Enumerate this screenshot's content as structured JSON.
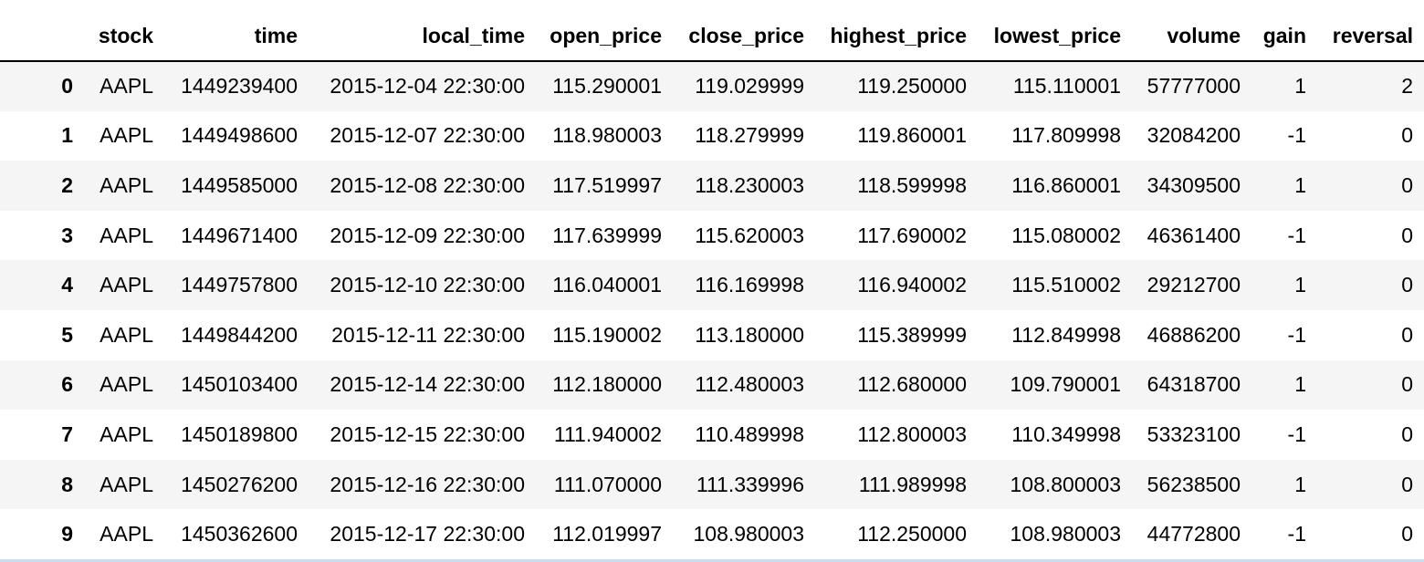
{
  "columns": [
    "",
    "stock",
    "time",
    "local_time",
    "open_price",
    "close_price",
    "highest_price",
    "lowest_price",
    "volume",
    "gain",
    "reversal"
  ],
  "rows": [
    [
      "0",
      "AAPL",
      "1449239400",
      "2015-12-04 22:30:00",
      "115.290001",
      "119.029999",
      "119.250000",
      "115.110001",
      "57777000",
      "1",
      "2"
    ],
    [
      "1",
      "AAPL",
      "1449498600",
      "2015-12-07 22:30:00",
      "118.980003",
      "118.279999",
      "119.860001",
      "117.809998",
      "32084200",
      "-1",
      "0"
    ],
    [
      "2",
      "AAPL",
      "1449585000",
      "2015-12-08 22:30:00",
      "117.519997",
      "118.230003",
      "118.599998",
      "116.860001",
      "34309500",
      "1",
      "0"
    ],
    [
      "3",
      "AAPL",
      "1449671400",
      "2015-12-09 22:30:00",
      "117.639999",
      "115.620003",
      "117.690002",
      "115.080002",
      "46361400",
      "-1",
      "0"
    ],
    [
      "4",
      "AAPL",
      "1449757800",
      "2015-12-10 22:30:00",
      "116.040001",
      "116.169998",
      "116.940002",
      "115.510002",
      "29212700",
      "1",
      "0"
    ],
    [
      "5",
      "AAPL",
      "1449844200",
      "2015-12-11 22:30:00",
      "115.190002",
      "113.180000",
      "115.389999",
      "112.849998",
      "46886200",
      "-1",
      "0"
    ],
    [
      "6",
      "AAPL",
      "1450103400",
      "2015-12-14 22:30:00",
      "112.180000",
      "112.480003",
      "112.680000",
      "109.790001",
      "64318700",
      "1",
      "0"
    ],
    [
      "7",
      "AAPL",
      "1450189800",
      "2015-12-15 22:30:00",
      "111.940002",
      "110.489998",
      "112.800003",
      "110.349998",
      "53323100",
      "-1",
      "0"
    ],
    [
      "8",
      "AAPL",
      "1450276200",
      "2015-12-16 22:30:00",
      "111.070000",
      "111.339996",
      "111.989998",
      "108.800003",
      "56238500",
      "1",
      "0"
    ],
    [
      "9",
      "AAPL",
      "1450362600",
      "2015-12-17 22:30:00",
      "112.019997",
      "108.980003",
      "112.250000",
      "108.980003",
      "44772800",
      "-1",
      "0"
    ]
  ]
}
